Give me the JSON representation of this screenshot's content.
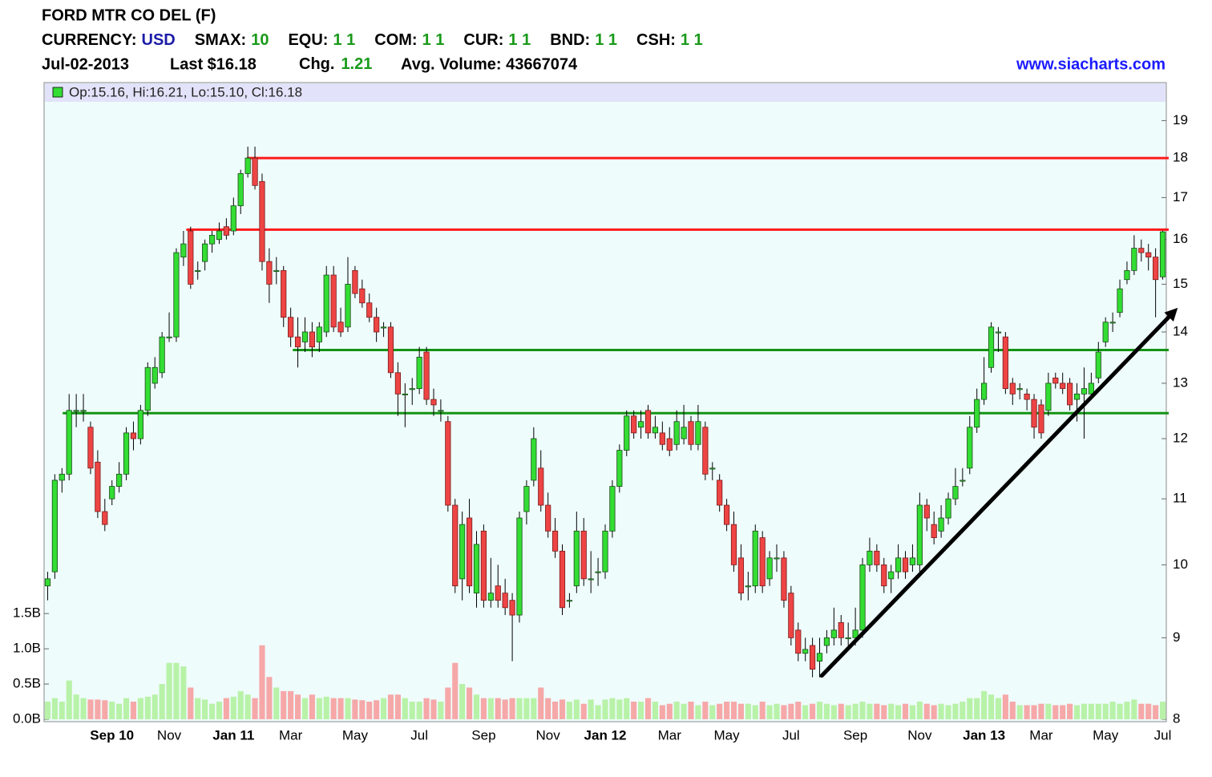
{
  "chart_data": {
    "type": "candlestick",
    "title": "FORD MTR CO DEL (F)",
    "info": [
      {
        "label": "CURRENCY:",
        "value": "USD",
        "color": "#1c1ca8"
      },
      {
        "label": "SMAX:",
        "value": "10",
        "color": "#1a9a1a"
      },
      {
        "label": "EQU:",
        "value": "1 1",
        "color": "#1a9a1a"
      },
      {
        "label": "COM:",
        "value": "1 1",
        "color": "#1a9a1a"
      },
      {
        "label": "CUR:",
        "value": "1 1",
        "color": "#1a9a1a"
      },
      {
        "label": "BND:",
        "value": "1 1",
        "color": "#1a9a1a"
      },
      {
        "label": "CSH:",
        "value": "1 1",
        "color": "#1a9a1a"
      }
    ],
    "date": "Jul-02-2013",
    "last": "Last $16.18",
    "change_label": "Chg.",
    "change": "1.21",
    "change_color": "#1a9a1a",
    "avg_volume": "Avg. Volume: 43667074",
    "source": "www.siacharts.com",
    "source_color": "#1a1aff",
    "legend": "Op:15.16, Hi:16.21, Lo:15.10, Cl:16.18",
    "log_scale": true,
    "ylim": [
      8,
      19.5
    ],
    "yticks": [
      8,
      9,
      10,
      11,
      12,
      13,
      14,
      15,
      16,
      17,
      18,
      19
    ],
    "y2lim": [
      0,
      8.75
    ],
    "y2ticks": [
      {
        "value": 0,
        "label": "0.0B"
      },
      {
        "value": 0.5,
        "label": "0.5B"
      },
      {
        "value": 1,
        "label": "1.0B"
      },
      {
        "value": 1.5,
        "label": "1.5B"
      }
    ],
    "up_color": "#33dd33",
    "down_color": "#ee4444",
    "volume_up_color": "#b8f2a8",
    "volume_down_color": "#f6a8a8",
    "categories": [
      null,
      null,
      null,
      null,
      null,
      null,
      null,
      null,
      null,
      "Sep 10",
      null,
      null,
      null,
      null,
      null,
      null,
      null,
      "Nov",
      null,
      null,
      null,
      null,
      null,
      null,
      null,
      null,
      "Jan 11",
      null,
      null,
      null,
      null,
      null,
      null,
      null,
      "Mar",
      null,
      null,
      null,
      null,
      null,
      null,
      null,
      null,
      "May",
      null,
      null,
      null,
      null,
      null,
      null,
      null,
      null,
      "Jul",
      null,
      null,
      null,
      null,
      null,
      null,
      null,
      null,
      "Sep",
      null,
      null,
      null,
      null,
      null,
      null,
      null,
      null,
      "Nov",
      null,
      null,
      null,
      null,
      null,
      null,
      null,
      "Jan 12",
      null,
      null,
      null,
      null,
      null,
      null,
      null,
      null,
      "Mar",
      null,
      null,
      null,
      null,
      null,
      null,
      null,
      "May",
      null,
      null,
      null,
      null,
      null,
      null,
      null,
      null,
      "Jul",
      null,
      null,
      null,
      null,
      null,
      null,
      null,
      null,
      "Sep",
      null,
      null,
      null,
      null,
      null,
      null,
      null,
      null,
      "Nov",
      null,
      null,
      null,
      null,
      null,
      null,
      null,
      null,
      "Jan 13",
      null,
      null,
      null,
      null,
      null,
      null,
      null,
      "Mar",
      null,
      null,
      null,
      null,
      null,
      null,
      null,
      null,
      "May",
      null,
      null,
      null,
      null,
      null,
      null,
      null,
      "Jul"
    ],
    "open": [
      9.7,
      9.9,
      11.3,
      11.4,
      12.5,
      12.5,
      12.2,
      11.6,
      10.8,
      11.0,
      11.2,
      11.4,
      12.1,
      12.0,
      12.5,
      13.0,
      13.2,
      13.9,
      13.9,
      15.6,
      16.2,
      15.3,
      15.5,
      15.9,
      16.0,
      16.3,
      16.2,
      16.8,
      17.6,
      18.0,
      17.4,
      15.5,
      15.3,
      15.3,
      14.3,
      13.9,
      13.8,
      14.0,
      13.8,
      14.0,
      15.2,
      14.2,
      14.1,
      15.3,
      14.9,
      14.6,
      14.3,
      14.1,
      14.1,
      13.2,
      12.8,
      12.9,
      12.9,
      13.6,
      12.7,
      12.5,
      12.3,
      10.9,
      9.8,
      10.7,
      9.6,
      10.5,
      9.5,
      9.7,
      9.6,
      9.5,
      9.3,
      10.8,
      11.3,
      11.5,
      10.9,
      10.5,
      10.2,
      9.5,
      9.7,
      10.5,
      9.8,
      9.9,
      9.9,
      10.5,
      11.2,
      11.8,
      12.4,
      12.2,
      12.5,
      12.1,
      12.1,
      12.0,
      11.9,
      12.0,
      12.3,
      11.9,
      12.2,
      11.5,
      11.3,
      10.9,
      10.6,
      10.1,
      9.7,
      9.7,
      10.4,
      9.8,
      10.1,
      10.1,
      9.6,
      9.1,
      8.8,
      8.9,
      8.7,
      8.9,
      9.0,
      9.2,
      9.0,
      9.0,
      9.1,
      10.0,
      10.2,
      10.0,
      9.8,
      9.9,
      10.1,
      10.0,
      10.0,
      10.9,
      10.6,
      10.5,
      10.7,
      11.0,
      11.3,
      11.5,
      12.2,
      12.7,
      13.3,
      14.0,
      13.9,
      13.0,
      12.9,
      12.8,
      12.7,
      12.6,
      12.5,
      13.1,
      13.0,
      13.0,
      12.7,
      12.8,
      12.8,
      13.1,
      13.8,
      14.2,
      14.4,
      15.1,
      15.3,
      15.8,
      15.7,
      15.6,
      15.16
    ],
    "high": [
      9.9,
      11.4,
      11.5,
      12.8,
      12.8,
      12.8,
      12.3,
      11.8,
      11.0,
      11.3,
      11.6,
      12.2,
      12.3,
      12.6,
      13.4,
      13.5,
      14.0,
      14.4,
      15.8,
      16.2,
      16.3,
      15.5,
      16.0,
      16.2,
      16.4,
      16.5,
      17.0,
      17.7,
      18.3,
      18.3,
      17.6,
      15.8,
      15.6,
      15.4,
      14.5,
      14.3,
      14.3,
      14.2,
      14.2,
      15.4,
      15.4,
      14.5,
      15.6,
      15.4,
      15.1,
      14.8,
      14.5,
      14.2,
      14.2,
      13.4,
      13.0,
      13.1,
      13.7,
      13.7,
      12.9,
      12.7,
      12.4,
      11.0,
      10.8,
      11.0,
      10.5,
      10.6,
      10.1,
      10.0,
      9.8,
      9.6,
      10.8,
      11.3,
      12.2,
      11.8,
      11.1,
      10.7,
      10.3,
      9.6,
      10.8,
      10.7,
      10.2,
      10.1,
      10.6,
      11.3,
      11.9,
      12.5,
      12.5,
      12.5,
      12.6,
      12.4,
      12.3,
      12.2,
      12.5,
      12.6,
      12.4,
      12.6,
      12.3,
      11.6,
      11.4,
      11.0,
      10.8,
      10.3,
      9.9,
      10.6,
      10.5,
      10.2,
      10.3,
      10.2,
      9.7,
      9.2,
      9.0,
      9.0,
      9.0,
      9.1,
      9.4,
      9.3,
      9.2,
      9.4,
      10.1,
      10.4,
      10.3,
      10.1,
      10.0,
      10.3,
      10.2,
      10.3,
      11.1,
      11.0,
      10.8,
      10.9,
      11.1,
      11.5,
      11.5,
      12.4,
      12.9,
      13.5,
      14.2,
      14.1,
      14.0,
      13.1,
      13.0,
      12.9,
      12.8,
      12.7,
      13.2,
      13.2,
      13.2,
      13.1,
      13.0,
      13.3,
      13.2,
      13.8,
      14.3,
      14.4,
      15.1,
      15.5,
      16.1,
      16.0,
      15.9,
      15.8,
      16.21
    ],
    "low": [
      9.5,
      9.8,
      11.1,
      11.3,
      12.2,
      12.3,
      11.4,
      10.7,
      10.5,
      10.9,
      11.1,
      11.3,
      11.8,
      11.9,
      12.4,
      12.9,
      13.1,
      13.8,
      13.8,
      15.4,
      14.9,
      15.1,
      15.3,
      15.7,
      15.9,
      16.0,
      16.1,
      16.6,
      17.5,
      17.2,
      15.3,
      14.6,
      15.0,
      14.1,
      13.7,
      13.3,
      13.6,
      13.5,
      13.6,
      13.9,
      14.0,
      13.9,
      14.0,
      14.7,
      14.5,
      14.2,
      13.8,
      13.9,
      13.1,
      12.4,
      12.2,
      12.6,
      12.8,
      12.6,
      12.4,
      12.3,
      10.8,
      9.6,
      9.5,
      9.6,
      9.4,
      9.4,
      9.4,
      9.4,
      9.3,
      8.7,
      9.2,
      10.6,
      11.2,
      10.8,
      10.4,
      10.1,
      9.3,
      9.4,
      9.6,
      9.7,
      9.6,
      9.7,
      9.8,
      10.4,
      11.1,
      11.7,
      12.0,
      12.0,
      12.0,
      12.0,
      11.8,
      11.7,
      11.8,
      11.9,
      11.8,
      11.8,
      11.3,
      11.3,
      10.8,
      10.5,
      9.9,
      9.5,
      9.5,
      9.6,
      9.6,
      9.7,
      9.9,
      9.4,
      8.9,
      8.7,
      8.7,
      8.5,
      8.5,
      8.8,
      8.9,
      8.9,
      8.9,
      8.9,
      9.0,
      9.9,
      9.9,
      9.6,
      9.6,
      9.8,
      9.8,
      9.9,
      9.9,
      10.5,
      10.3,
      10.4,
      10.6,
      10.9,
      11.2,
      11.4,
      12.1,
      12.6,
      13.2,
      13.6,
      12.8,
      12.6,
      12.7,
      12.5,
      12.0,
      12.0,
      12.4,
      12.9,
      12.8,
      12.5,
      12.3,
      12.0,
      12.7,
      13.0,
      13.7,
      14.0,
      14.3,
      15.0,
      15.2,
      15.5,
      15.3,
      14.3,
      15.1
    ],
    "close": [
      9.8,
      11.3,
      11.4,
      12.5,
      12.5,
      12.5,
      11.5,
      10.8,
      10.6,
      11.2,
      11.4,
      12.1,
      12.0,
      12.5,
      13.3,
      13.3,
      13.9,
      13.9,
      15.7,
      15.9,
      15.0,
      15.3,
      15.9,
      16.1,
      16.2,
      16.1,
      16.8,
      17.6,
      18.0,
      17.3,
      15.5,
      15.0,
      15.3,
      14.3,
      13.9,
      13.7,
      14.0,
      13.7,
      14.1,
      15.2,
      14.1,
      14.0,
      15.0,
      14.8,
      14.6,
      14.3,
      14.0,
      14.1,
      13.2,
      12.8,
      12.8,
      12.9,
      13.5,
      12.7,
      12.6,
      12.5,
      10.9,
      9.7,
      10.6,
      9.7,
      10.3,
      9.5,
      9.6,
      9.5,
      9.4,
      9.3,
      10.7,
      11.2,
      12.0,
      10.9,
      10.5,
      10.2,
      9.4,
      9.5,
      10.5,
      9.8,
      9.8,
      9.9,
      10.5,
      11.2,
      11.8,
      12.4,
      12.1,
      12.3,
      12.1,
      12.2,
      11.9,
      11.8,
      12.3,
      12.2,
      11.9,
      12.3,
      11.4,
      11.5,
      10.9,
      10.6,
      10.0,
      9.6,
      9.7,
      10.5,
      9.7,
      10.1,
      10.1,
      9.5,
      9.0,
      8.8,
      8.85,
      8.6,
      8.8,
      9.0,
      9.1,
      9.0,
      9.0,
      9.1,
      10.0,
      10.2,
      10.0,
      9.7,
      9.9,
      10.1,
      9.9,
      10.1,
      10.9,
      10.7,
      10.4,
      10.7,
      11.0,
      11.2,
      11.3,
      12.2,
      12.7,
      13.0,
      14.1,
      14.0,
      12.9,
      12.8,
      12.9,
      12.7,
      12.2,
      12.1,
      13.0,
      13.0,
      12.9,
      12.6,
      12.8,
      12.9,
      13.0,
      13.6,
      14.2,
      14.2,
      14.9,
      15.3,
      15.8,
      15.7,
      15.6,
      15.1,
      16.18
    ],
    "volume": [
      0.25,
      0.3,
      0.25,
      0.55,
      0.35,
      0.3,
      0.28,
      0.28,
      0.27,
      0.25,
      0.22,
      0.3,
      0.25,
      0.3,
      0.32,
      0.35,
      0.5,
      0.8,
      0.8,
      0.75,
      0.45,
      0.3,
      0.28,
      0.22,
      0.25,
      0.3,
      0.32,
      0.4,
      0.35,
      0.3,
      1.05,
      0.6,
      0.45,
      0.4,
      0.4,
      0.35,
      0.3,
      0.35,
      0.3,
      0.32,
      0.3,
      0.3,
      0.3,
      0.28,
      0.27,
      0.25,
      0.27,
      0.3,
      0.35,
      0.35,
      0.3,
      0.25,
      0.25,
      0.3,
      0.28,
      0.25,
      0.45,
      0.8,
      0.5,
      0.45,
      0.35,
      0.3,
      0.3,
      0.3,
      0.28,
      0.3,
      0.3,
      0.3,
      0.3,
      0.45,
      0.3,
      0.25,
      0.28,
      0.25,
      0.28,
      0.22,
      0.28,
      0.2,
      0.28,
      0.3,
      0.28,
      0.3,
      0.25,
      0.25,
      0.3,
      0.25,
      0.2,
      0.22,
      0.25,
      0.22,
      0.25,
      0.2,
      0.25,
      0.2,
      0.22,
      0.25,
      0.25,
      0.22,
      0.22,
      0.2,
      0.25,
      0.2,
      0.22,
      0.2,
      0.22,
      0.25,
      0.2,
      0.22,
      0.25,
      0.22,
      0.2,
      0.22,
      0.2,
      0.22,
      0.25,
      0.22,
      0.22,
      0.2,
      0.22,
      0.2,
      0.22,
      0.2,
      0.25,
      0.22,
      0.2,
      0.22,
      0.2,
      0.22,
      0.25,
      0.3,
      0.3,
      0.4,
      0.35,
      0.3,
      0.35,
      0.25,
      0.2,
      0.2,
      0.2,
      0.22,
      0.22,
      0.2,
      0.2,
      0.22,
      0.2,
      0.22,
      0.22,
      0.22,
      0.22,
      0.25,
      0.22,
      0.25,
      0.28,
      0.22,
      0.22,
      0.2,
      0.25
    ],
    "levels": [
      {
        "value": 18.0,
        "from": 27.9,
        "color": "#ff1a1a"
      },
      {
        "value": 16.23,
        "from": 19.4,
        "color": "#ff1a1a"
      },
      {
        "value": 13.64,
        "from": 34.3,
        "color": "#149414"
      },
      {
        "value": 12.45,
        "from": 2.1,
        "color": "#149414"
      }
    ],
    "trendline": {
      "x0": 108.3,
      "y0": 8.52,
      "x1": 157.6,
      "y1": 14.42,
      "color": "#000000"
    }
  }
}
